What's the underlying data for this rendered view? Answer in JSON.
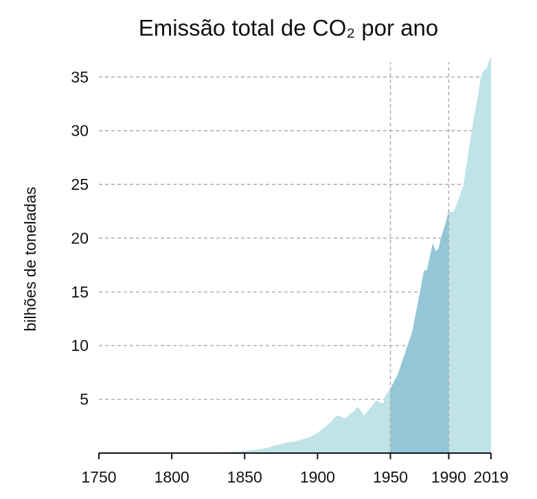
{
  "chart_data": {
    "type": "area",
    "title": "Emissão total de CO₂ por ano",
    "xlabel": "",
    "ylabel": "bilhões de toneladas",
    "xlim": [
      1750,
      2019
    ],
    "ylim": [
      0,
      37
    ],
    "x_ticks": [
      1750,
      1800,
      1850,
      1900,
      1950,
      1990,
      2019
    ],
    "y_ticks": [
      5,
      10,
      15,
      20,
      25,
      30,
      35
    ],
    "grid": "horizontal dashed",
    "highlight_lines": [
      1950,
      1990
    ],
    "highlight_range": [
      1950,
      1990
    ],
    "colors": {
      "area": "#bfe3e6",
      "highlight": "#93c6d6",
      "grid": "#b0b0b0",
      "axis": "#111111"
    },
    "series": [
      {
        "x": [
          1750,
          1800,
          1820,
          1840,
          1850,
          1860,
          1866,
          1870,
          1874,
          1880,
          1885,
          1890,
          1895,
          1900,
          1905,
          1910,
          1913,
          1916,
          1919,
          1922,
          1925,
          1927,
          1929,
          1932,
          1935,
          1938,
          1940,
          1943,
          1945,
          1946,
          1950,
          1955,
          1960,
          1965,
          1970,
          1973,
          1975,
          1979,
          1981,
          1983,
          1985,
          1987,
          1990,
          1993,
          1995,
          1998,
          2000,
          2003,
          2005,
          2008,
          2010,
          2012,
          2014,
          2016,
          2018,
          2019
        ],
        "values": [
          0.01,
          0.03,
          0.05,
          0.1,
          0.2,
          0.35,
          0.5,
          0.7,
          0.8,
          1.0,
          1.1,
          1.3,
          1.5,
          1.9,
          2.4,
          3.0,
          3.5,
          3.4,
          3.2,
          3.6,
          3.9,
          4.3,
          4.1,
          3.5,
          4.0,
          4.5,
          4.9,
          4.7,
          4.6,
          5.2,
          6.0,
          7.3,
          9.3,
          11.3,
          14.8,
          17.0,
          17.0,
          19.5,
          18.8,
          19.0,
          20.2,
          21.0,
          22.5,
          22.4,
          23.0,
          24.1,
          24.9,
          27.5,
          29.3,
          31.8,
          33.2,
          35.0,
          35.6,
          35.8,
          36.6,
          36.9
        ]
      }
    ]
  }
}
